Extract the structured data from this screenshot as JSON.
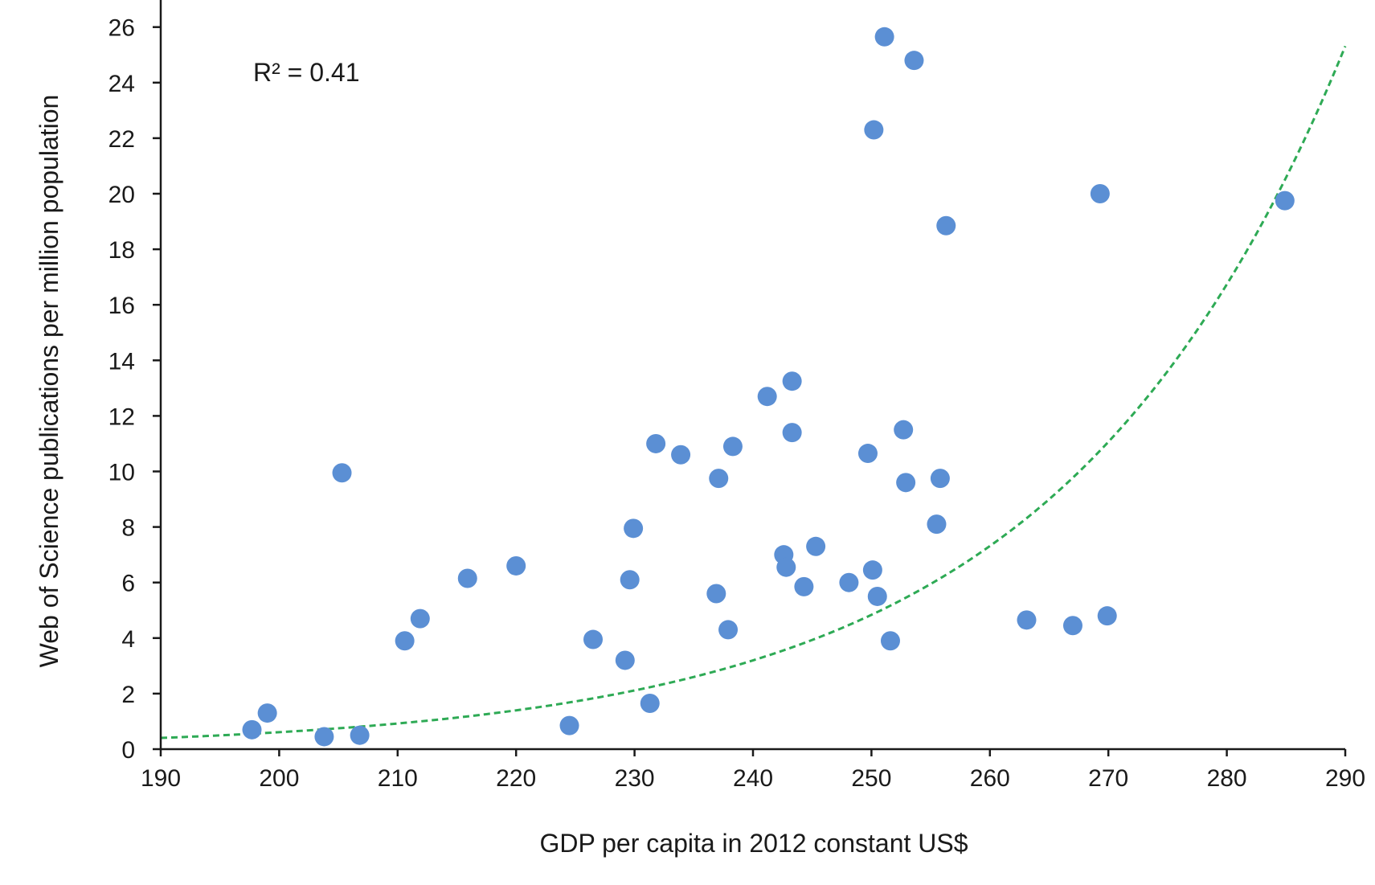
{
  "chart_data": {
    "type": "scatter",
    "title": "",
    "xlabel": "GDP per capita in 2012 constant US$",
    "ylabel": "Web of Science publications per million population",
    "xlim": [
      190,
      290
    ],
    "ylim": [
      0,
      27
    ],
    "xticks": [
      190,
      200,
      210,
      220,
      230,
      240,
      250,
      260,
      270,
      280,
      290
    ],
    "yticks": [
      0,
      2,
      4,
      6,
      8,
      10,
      12,
      14,
      16,
      18,
      20,
      22,
      24,
      26
    ],
    "grid": false,
    "annotation": "R² = 0.41",
    "point_color": "#5b8fd4",
    "trendline_color": "#2eaa55",
    "trendline": {
      "type": "exponential",
      "a": 0.0001555,
      "b": 0.04138,
      "style": "dashed"
    },
    "points": [
      {
        "x": 197.7,
        "y": 0.7
      },
      {
        "x": 199.0,
        "y": 1.3
      },
      {
        "x": 203.8,
        "y": 0.45
      },
      {
        "x": 205.3,
        "y": 9.95
      },
      {
        "x": 206.8,
        "y": 0.5
      },
      {
        "x": 210.6,
        "y": 3.9
      },
      {
        "x": 211.9,
        "y": 4.7
      },
      {
        "x": 215.9,
        "y": 6.15
      },
      {
        "x": 220.0,
        "y": 6.6
      },
      {
        "x": 224.5,
        "y": 0.85
      },
      {
        "x": 226.5,
        "y": 3.95
      },
      {
        "x": 229.2,
        "y": 3.2
      },
      {
        "x": 229.6,
        "y": 6.1
      },
      {
        "x": 229.9,
        "y": 7.95
      },
      {
        "x": 231.3,
        "y": 1.65
      },
      {
        "x": 231.8,
        "y": 11.0
      },
      {
        "x": 233.9,
        "y": 10.6
      },
      {
        "x": 236.9,
        "y": 5.6
      },
      {
        "x": 237.1,
        "y": 9.75
      },
      {
        "x": 237.9,
        "y": 4.3
      },
      {
        "x": 238.3,
        "y": 10.9
      },
      {
        "x": 241.2,
        "y": 12.7
      },
      {
        "x": 242.6,
        "y": 7.0
      },
      {
        "x": 242.8,
        "y": 6.55
      },
      {
        "x": 243.3,
        "y": 13.25
      },
      {
        "x": 243.3,
        "y": 11.4
      },
      {
        "x": 244.3,
        "y": 5.85
      },
      {
        "x": 245.3,
        "y": 7.3
      },
      {
        "x": 248.1,
        "y": 6.0
      },
      {
        "x": 249.7,
        "y": 10.65
      },
      {
        "x": 250.1,
        "y": 6.45
      },
      {
        "x": 250.2,
        "y": 22.3
      },
      {
        "x": 250.5,
        "y": 5.5
      },
      {
        "x": 251.1,
        "y": 25.65
      },
      {
        "x": 251.6,
        "y": 3.9
      },
      {
        "x": 252.7,
        "y": 11.5
      },
      {
        "x": 252.9,
        "y": 9.6
      },
      {
        "x": 253.6,
        "y": 24.8
      },
      {
        "x": 255.5,
        "y": 8.1
      },
      {
        "x": 255.8,
        "y": 9.75
      },
      {
        "x": 256.3,
        "y": 18.85
      },
      {
        "x": 263.1,
        "y": 4.65
      },
      {
        "x": 267.0,
        "y": 4.45
      },
      {
        "x": 269.3,
        "y": 20.0
      },
      {
        "x": 269.9,
        "y": 4.8
      },
      {
        "x": 284.9,
        "y": 19.75
      }
    ]
  }
}
